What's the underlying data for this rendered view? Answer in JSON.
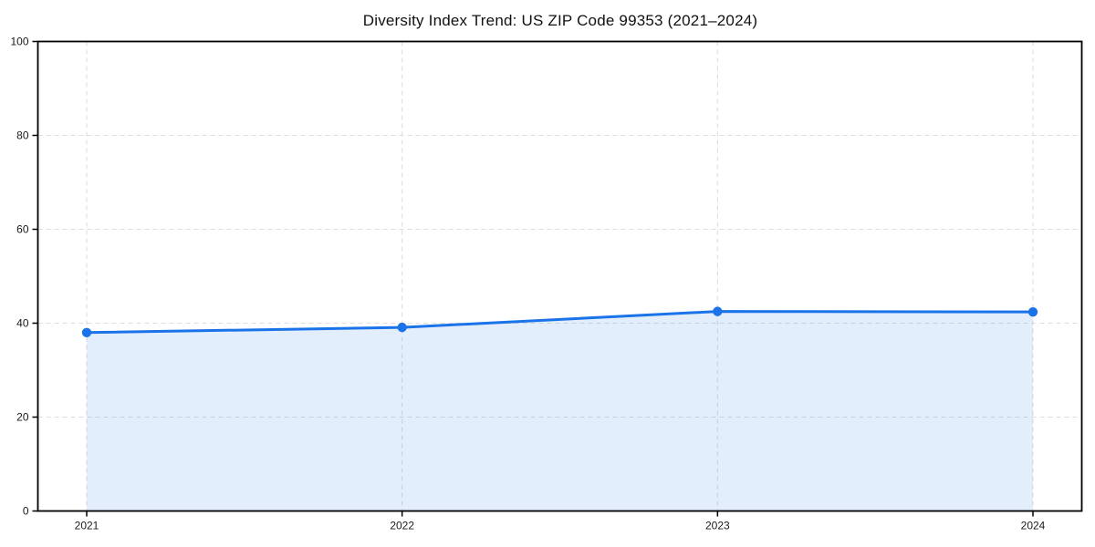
{
  "chart_data": {
    "type": "line",
    "title": "Diversity Index Trend: US ZIP Code 99353 (2021–2024)",
    "x": [
      2021,
      2022,
      2023,
      2024
    ],
    "x_tick_labels": [
      "2021",
      "2022",
      "2023",
      "2024"
    ],
    "series": [
      {
        "name": "Diversity Index",
        "values": [
          38.0,
          39.1,
          42.5,
          42.4
        ]
      }
    ],
    "xlabel": "",
    "ylabel": "",
    "ylim": [
      0,
      100
    ],
    "yticks": [
      0,
      20,
      40,
      60,
      80,
      100
    ],
    "y_tick_labels": [
      "0",
      "20",
      "40",
      "60",
      "80",
      "100"
    ],
    "grid": true,
    "grid_style": "dashed",
    "legend_position": "none",
    "area_fill_to_zero": true,
    "marker": "circle",
    "style": {
      "line_color": "#1a73e8",
      "marker_color": "#1a73e8",
      "area_fill_color": "rgba(26,115,232,0.12)",
      "grid_color": "#dedede",
      "axis_color": "#000000",
      "background_color": "#ffffff",
      "title_color": "#111111",
      "tick_label_color": "#1a1a1a"
    }
  }
}
